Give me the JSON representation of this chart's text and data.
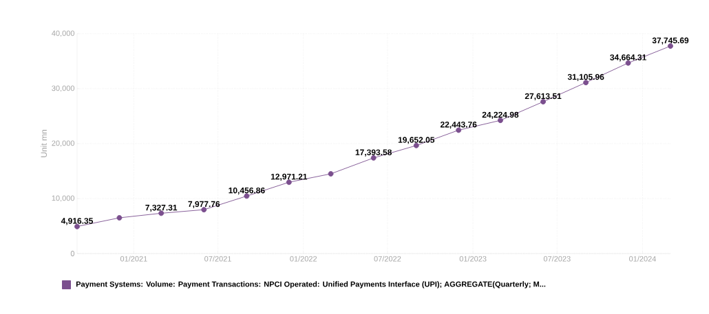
{
  "chart_data": {
    "type": "line",
    "ylabel": "Unit mn",
    "x": [
      "2020-09",
      "2020-12",
      "2021-03",
      "2021-06",
      "2021-09",
      "2021-12",
      "2022-03",
      "2022-06",
      "2022-09",
      "2022-12",
      "2023-03",
      "2023-06",
      "2023-09",
      "2023-12",
      "2024-03"
    ],
    "series": [
      {
        "name": "Payment Systems: Volume: Payment Transactions: NPCI Operated: Unified Payments Interface (UPI); AGGREGATE(Quarterly; M...",
        "color": "#7b4f8e",
        "values": [
          4916.35,
          6500,
          7327.31,
          7977.76,
          10456.86,
          12971.21,
          14500,
          17393.58,
          19652.05,
          22443.76,
          24224.98,
          27613.51,
          31105.96,
          34664.31,
          37745.69
        ],
        "value_labels": [
          "4,916.35",
          null,
          "7,327.31",
          "7,977.76",
          "10,456.86",
          "12,971.21",
          null,
          "17,393.58",
          "19,652.05",
          "22,443.76",
          "24,224.98",
          "27,613.51",
          "31,105.96",
          "34,664.31",
          "37,745.69"
        ]
      }
    ],
    "xlim": [
      "2020-09",
      "2024-03"
    ],
    "xticks": [
      {
        "value": "2021-01",
        "label": "01/2021"
      },
      {
        "value": "2021-07",
        "label": "07/2021"
      },
      {
        "value": "2022-01",
        "label": "01/2022"
      },
      {
        "value": "2022-07",
        "label": "07/2022"
      },
      {
        "value": "2023-01",
        "label": "01/2023"
      },
      {
        "value": "2023-07",
        "label": "07/2023"
      },
      {
        "value": "2024-01",
        "label": "01/2024"
      }
    ],
    "ylim": [
      0,
      40000
    ],
    "yticks": [
      {
        "value": 0,
        "label": "0"
      },
      {
        "value": 10000,
        "label": "10,000"
      },
      {
        "value": 20000,
        "label": "20,000"
      },
      {
        "value": 30000,
        "label": "30,000"
      },
      {
        "value": 40000,
        "label": "40,000"
      }
    ],
    "grid": true,
    "legend": "bottom",
    "marker": "circle",
    "line_style": "solid"
  }
}
